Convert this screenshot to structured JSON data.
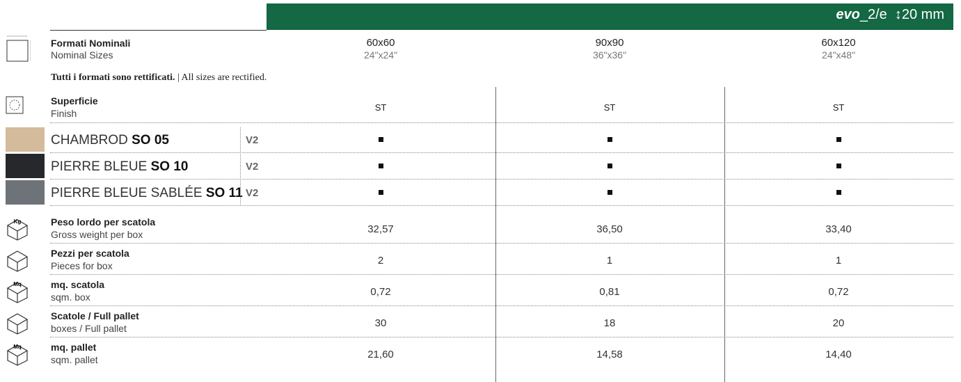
{
  "header": {
    "brand": "evo",
    "brand_suffix": "2/e",
    "thickness": "20 mm"
  },
  "sizes": {
    "label": "Formati Nominali",
    "sublabel": "Nominal Sizes",
    "items": [
      {
        "metric": "60x60",
        "imperial": "24\"x24\""
      },
      {
        "metric": "90x90",
        "imperial": "36\"x36\""
      },
      {
        "metric": "60x120",
        "imperial": "24\"x48\""
      }
    ]
  },
  "note": {
    "bold": "Tutti i formati sono rettificati.",
    "text": "| All sizes are rectified."
  },
  "finish": {
    "label": "Superficie",
    "sublabel": "Finish",
    "values": [
      "ST",
      "ST",
      "ST"
    ]
  },
  "products": [
    {
      "name": "CHAMBROD",
      "code": "SO 05",
      "version": "V2",
      "swatch": "#d3bb9b",
      "available": [
        true,
        true,
        true
      ]
    },
    {
      "name": "PIERRE BLEUE",
      "code": "SO 10",
      "version": "V2",
      "swatch": "#26282b",
      "available": [
        true,
        true,
        true
      ]
    },
    {
      "name": "PIERRE BLEUE SABLÉE",
      "code": "SO 11",
      "version": "V2",
      "swatch": "#6d7378",
      "available": [
        true,
        true,
        true
      ]
    }
  ],
  "specs": [
    {
      "icon_label": "Kg",
      "label": "Peso lordo per scatola",
      "sublabel": "Gross weight per box",
      "values": [
        "32,57",
        "36,50",
        "33,40"
      ]
    },
    {
      "label": "Pezzi per scatola",
      "sublabel": "Pieces for box",
      "values": [
        "2",
        "1",
        "1"
      ]
    },
    {
      "icon_label": "Mq",
      "label": "mq. scatola",
      "sublabel": "sqm. box",
      "values": [
        "0,72",
        "0,81",
        "0,72"
      ]
    },
    {
      "label": "Scatole / Full pallet",
      "sublabel": "boxes / Full pallet",
      "values": [
        "30",
        "18",
        "20"
      ]
    },
    {
      "icon_label": "Mq",
      "label": "mq. pallet",
      "sublabel": "sqm. pallet",
      "values": [
        "21,60",
        "14,58",
        "14,40"
      ]
    }
  ]
}
